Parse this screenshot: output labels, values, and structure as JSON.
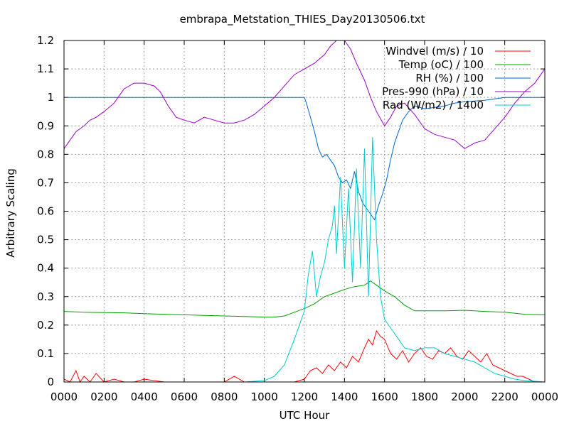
{
  "chart_data": {
    "type": "line",
    "title": "embrapa_Metstation_THIES_Day20130506.txt",
    "xlabel": "UTC Hour",
    "ylabel": "Arbitrary Scaling",
    "xlim": [
      0,
      24
    ],
    "ylim": [
      0,
      1.2
    ],
    "grid": true,
    "legend_position": "top-right",
    "x_ticks": [
      {
        "value": 0,
        "label": "0000"
      },
      {
        "value": 2,
        "label": "0200"
      },
      {
        "value": 4,
        "label": "0400"
      },
      {
        "value": 6,
        "label": "0600"
      },
      {
        "value": 8,
        "label": "0800"
      },
      {
        "value": 10,
        "label": "1000"
      },
      {
        "value": 12,
        "label": "1200"
      },
      {
        "value": 14,
        "label": "1400"
      },
      {
        "value": 16,
        "label": "1600"
      },
      {
        "value": 18,
        "label": "1800"
      },
      {
        "value": 20,
        "label": "2000"
      },
      {
        "value": 22,
        "label": "2200"
      },
      {
        "value": 24,
        "label": "0000"
      }
    ],
    "y_ticks": [
      {
        "value": 0,
        "label": "0"
      },
      {
        "value": 0.1,
        "label": "0.1"
      },
      {
        "value": 0.2,
        "label": "0.2"
      },
      {
        "value": 0.3,
        "label": "0.3"
      },
      {
        "value": 0.4,
        "label": "0.4"
      },
      {
        "value": 0.5,
        "label": "0.5"
      },
      {
        "value": 0.6,
        "label": "0.6"
      },
      {
        "value": 0.7,
        "label": "0.7"
      },
      {
        "value": 0.8,
        "label": "0.8"
      },
      {
        "value": 0.9,
        "label": "0.9"
      },
      {
        "value": 1,
        "label": "1"
      },
      {
        "value": 1.1,
        "label": "1.1"
      },
      {
        "value": 1.2,
        "label": "1.2"
      }
    ],
    "series": [
      {
        "name": "Windvel (m/s) / 10",
        "color": "#ff0000",
        "x": [
          0,
          0.3,
          0.6,
          0.8,
          1.0,
          1.3,
          1.6,
          2.0,
          2.5,
          3.0,
          3.5,
          4.0,
          5.0,
          6.0,
          7.0,
          8.0,
          8.5,
          9.0,
          10.0,
          11.0,
          11.5,
          12.0,
          12.3,
          12.6,
          12.9,
          13.2,
          13.5,
          13.8,
          14.1,
          14.4,
          14.7,
          15.0,
          15.2,
          15.4,
          15.6,
          15.8,
          16.0,
          16.3,
          16.6,
          16.9,
          17.2,
          17.5,
          17.8,
          18.1,
          18.4,
          18.7,
          19.0,
          19.3,
          19.6,
          19.9,
          20.2,
          20.5,
          20.8,
          21.1,
          21.4,
          21.7,
          22.0,
          22.3,
          22.6,
          22.9,
          23.2,
          23.5,
          24.0
        ],
        "values": [
          0.01,
          0.0,
          0.04,
          0.0,
          0.02,
          0.0,
          0.03,
          0.0,
          0.01,
          0.0,
          0.0,
          0.01,
          0.0,
          0.0,
          0.0,
          0.0,
          0.02,
          0.0,
          0.0,
          0.0,
          0.0,
          0.01,
          0.04,
          0.05,
          0.03,
          0.06,
          0.04,
          0.07,
          0.05,
          0.09,
          0.07,
          0.12,
          0.15,
          0.13,
          0.18,
          0.16,
          0.15,
          0.1,
          0.08,
          0.11,
          0.07,
          0.1,
          0.12,
          0.09,
          0.08,
          0.11,
          0.1,
          0.12,
          0.09,
          0.08,
          0.11,
          0.09,
          0.07,
          0.1,
          0.06,
          0.05,
          0.04,
          0.03,
          0.02,
          0.02,
          0.01,
          0.0,
          0.0
        ]
      },
      {
        "name": "Temp (oC) / 100",
        "color": "#00a000",
        "x": [
          0,
          1,
          2,
          3,
          4,
          5,
          6,
          7,
          8,
          9,
          10,
          10.5,
          11,
          11.5,
          12,
          12.5,
          13,
          13.5,
          14,
          14.5,
          15,
          15.3,
          15.5,
          15.8,
          16,
          16.5,
          17,
          17.5,
          18,
          19,
          20,
          21,
          22,
          23,
          24
        ],
        "values": [
          0.248,
          0.245,
          0.244,
          0.243,
          0.24,
          0.238,
          0.236,
          0.234,
          0.232,
          0.23,
          0.228,
          0.228,
          0.232,
          0.245,
          0.258,
          0.275,
          0.3,
          0.312,
          0.325,
          0.335,
          0.34,
          0.355,
          0.345,
          0.33,
          0.32,
          0.3,
          0.27,
          0.25,
          0.25,
          0.25,
          0.252,
          0.248,
          0.245,
          0.238,
          0.236
        ]
      },
      {
        "name": "RH (%) / 100",
        "color": "#0066cc",
        "x": [
          0,
          1,
          2,
          3,
          4,
          5,
          6,
          7,
          8,
          9,
          10,
          11,
          12,
          12.1,
          12.3,
          12.5,
          12.7,
          12.9,
          13.1,
          13.3,
          13.5,
          13.7,
          13.9,
          14.1,
          14.3,
          14.5,
          14.7,
          14.9,
          15.1,
          15.3,
          15.5,
          15.7,
          15.9,
          16.1,
          16.3,
          16.5,
          16.7,
          16.9,
          17.2,
          17.5,
          18,
          18.5,
          19,
          19.5,
          20,
          21,
          22,
          23,
          24
        ],
        "values": [
          1,
          1,
          1,
          1,
          1,
          1,
          1,
          1,
          1,
          1,
          1,
          1,
          1,
          0.98,
          0.93,
          0.88,
          0.82,
          0.79,
          0.8,
          0.78,
          0.76,
          0.72,
          0.7,
          0.71,
          0.68,
          0.74,
          0.67,
          0.63,
          0.61,
          0.59,
          0.57,
          0.62,
          0.66,
          0.71,
          0.78,
          0.84,
          0.88,
          0.92,
          0.95,
          0.97,
          0.96,
          0.965,
          0.97,
          0.98,
          0.985,
          0.99,
          1,
          1,
          1
        ]
      },
      {
        "name": "Pres-990 (hPa) / 10",
        "color": "#9900cc",
        "x": [
          0,
          0.3,
          0.6,
          1,
          1.3,
          1.6,
          2,
          2.5,
          3,
          3.5,
          4,
          4.5,
          4.8,
          5.2,
          5.6,
          6,
          6.5,
          7,
          7.5,
          8,
          8.5,
          9,
          9.5,
          10,
          10.5,
          11,
          11.5,
          12,
          12.5,
          13,
          13.3,
          13.6,
          14,
          14.3,
          14.6,
          15,
          15.3,
          15.6,
          16,
          16.3,
          16.6,
          17,
          17.5,
          18,
          18.5,
          19,
          19.5,
          20,
          20.5,
          21,
          21.5,
          22,
          22.5,
          23,
          23.5,
          24
        ],
        "values": [
          0.82,
          0.85,
          0.88,
          0.9,
          0.92,
          0.93,
          0.95,
          0.98,
          1.03,
          1.05,
          1.05,
          1.04,
          1.02,
          0.97,
          0.93,
          0.92,
          0.91,
          0.93,
          0.92,
          0.91,
          0.91,
          0.92,
          0.94,
          0.97,
          1,
          1.04,
          1.08,
          1.1,
          1.12,
          1.15,
          1.18,
          1.2,
          1.2,
          1.17,
          1.12,
          1.06,
          1.0,
          0.95,
          0.9,
          0.93,
          0.97,
          0.98,
          0.94,
          0.89,
          0.87,
          0.86,
          0.85,
          0.82,
          0.84,
          0.85,
          0.89,
          0.93,
          0.98,
          1.02,
          1.05,
          1.1
        ]
      },
      {
        "name": "Rad (W/m2) / 1400",
        "color": "#00cccc",
        "x": [
          0,
          9,
          10,
          10.5,
          11,
          11.5,
          12,
          12.2,
          12.4,
          12.6,
          12.8,
          13,
          13.2,
          13.4,
          13.5,
          13.6,
          13.8,
          14,
          14.2,
          14.4,
          14.6,
          14.8,
          15,
          15.2,
          15.4,
          15.6,
          15.8,
          16,
          16.5,
          17,
          17.5,
          18,
          18.5,
          19,
          19.5,
          20,
          20.5,
          21,
          21.5,
          22,
          22.5,
          23,
          24
        ],
        "values": [
          0,
          0,
          0.005,
          0.02,
          0.06,
          0.15,
          0.25,
          0.38,
          0.46,
          0.3,
          0.37,
          0.42,
          0.5,
          0.55,
          0.62,
          0.45,
          0.72,
          0.4,
          0.68,
          0.35,
          0.75,
          0.4,
          0.82,
          0.3,
          0.86,
          0.5,
          0.3,
          0.22,
          0.17,
          0.12,
          0.11,
          0.12,
          0.12,
          0.1,
          0.09,
          0.08,
          0.07,
          0.05,
          0.03,
          0.02,
          0.01,
          0.005,
          0
        ]
      }
    ]
  }
}
